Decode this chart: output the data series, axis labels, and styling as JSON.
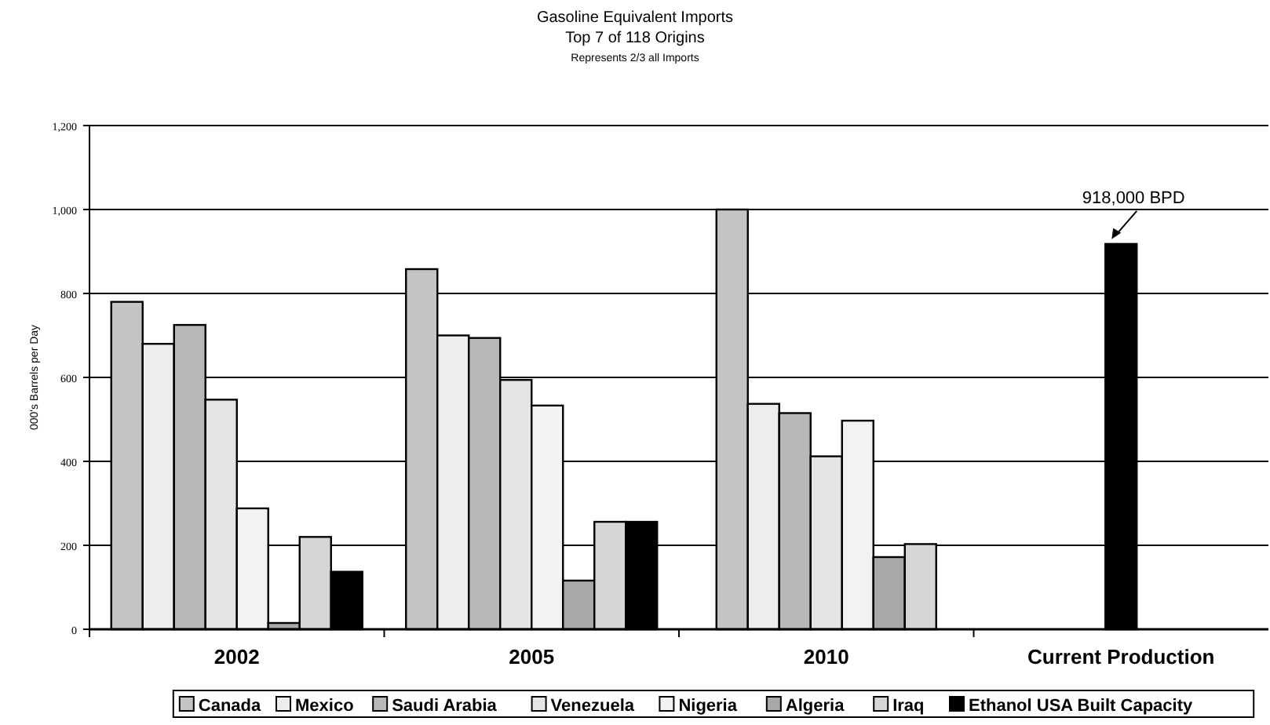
{
  "chart_data": {
    "type": "bar",
    "title": "Gasoline Equivalent Imports",
    "subtitle": [
      "Top 7 of 118 Origins",
      "Represents 2/3 all Imports"
    ],
    "ylabel": "000's Barrels per Day",
    "categories": [
      "2002",
      "2005",
      "2010",
      "Current Production"
    ],
    "series": [
      {
        "name": "Canada",
        "color": "#c4c4c4",
        "values": [
          780,
          858,
          1000,
          null
        ]
      },
      {
        "name": "Mexico",
        "color": "#ededed",
        "values": [
          680,
          700,
          537,
          null
        ]
      },
      {
        "name": "Saudi Arabia",
        "color": "#b8b8b8",
        "values": [
          725,
          694,
          515,
          null
        ]
      },
      {
        "name": "Venezuela",
        "color": "#e4e4e4",
        "values": [
          547,
          594,
          412,
          null
        ]
      },
      {
        "name": "Nigeria",
        "color": "#f2f2f2",
        "values": [
          288,
          533,
          497,
          null
        ]
      },
      {
        "name": "Algeria",
        "color": "#a8a8a8",
        "values": [
          15,
          116,
          172,
          null
        ]
      },
      {
        "name": "Iraq",
        "color": "#d6d6d6",
        "values": [
          220,
          256,
          203,
          null
        ]
      },
      {
        "name": "Ethanol USA Built Capacity",
        "color": "#000000",
        "values": [
          137,
          256,
          null,
          918
        ]
      }
    ],
    "ylim": [
      0,
      1200
    ],
    "yticks": [
      0,
      200,
      400,
      600,
      800,
      {
        "value": 1000,
        "label": "1,000"
      },
      {
        "value": 1200,
        "label": "1,200"
      }
    ],
    "grid": "y",
    "legend": "bottom",
    "annotations": [
      {
        "text": "918,000 BPD",
        "x": "Current Production",
        "y": 918
      }
    ]
  }
}
